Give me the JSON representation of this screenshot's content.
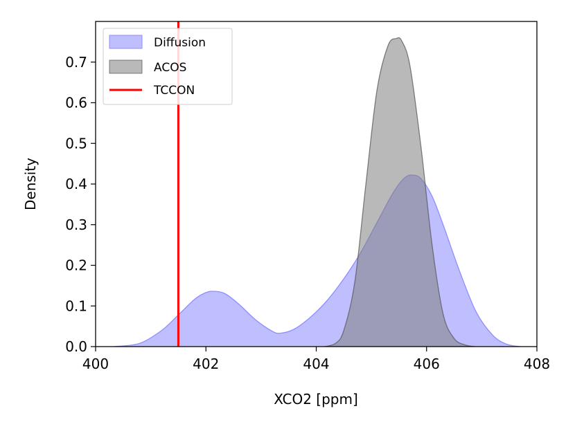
{
  "chart_data": {
    "type": "area",
    "xlabel": "XCO2 [ppm]",
    "ylabel": "Density",
    "xlim": [
      400,
      408
    ],
    "ylim": [
      0.0,
      0.8
    ],
    "x_ticks": [
      400,
      402,
      404,
      406,
      408
    ],
    "x_tick_labels": [
      "400",
      "402",
      "404",
      "406",
      "408"
    ],
    "y_ticks": [
      0.0,
      0.1,
      0.2,
      0.3,
      0.4,
      0.5,
      0.6,
      0.7
    ],
    "y_tick_labels": [
      "0.0",
      "0.1",
      "0.2",
      "0.3",
      "0.4",
      "0.5",
      "0.6",
      "0.7"
    ],
    "legend_position": "top-left",
    "series": [
      {
        "name": "Diffusion",
        "kind": "filled-density",
        "color": "#8080ff",
        "x": [
          400.35,
          400.8,
          401.2,
          401.5,
          401.8,
          402.0,
          402.15,
          402.35,
          402.6,
          402.9,
          403.2,
          403.35,
          403.6,
          403.9,
          404.2,
          404.5,
          404.8,
          405.1,
          405.4,
          405.6,
          405.75,
          405.9,
          406.1,
          406.3,
          406.6,
          406.9,
          407.2,
          407.45,
          407.7
        ],
        "values": [
          0.0,
          0.008,
          0.04,
          0.078,
          0.117,
          0.133,
          0.136,
          0.13,
          0.104,
          0.066,
          0.038,
          0.033,
          0.043,
          0.073,
          0.114,
          0.167,
          0.23,
          0.305,
          0.38,
          0.415,
          0.422,
          0.413,
          0.37,
          0.3,
          0.185,
          0.085,
          0.028,
          0.006,
          0.0
        ]
      },
      {
        "name": "ACOS",
        "kind": "filled-density",
        "color": "#808080",
        "x": [
          404.15,
          404.35,
          404.5,
          404.7,
          404.9,
          405.1,
          405.3,
          405.45,
          405.55,
          405.7,
          405.9,
          406.1,
          406.3,
          406.5,
          406.7,
          406.88
        ],
        "values": [
          0.0,
          0.008,
          0.04,
          0.16,
          0.4,
          0.63,
          0.74,
          0.758,
          0.752,
          0.69,
          0.49,
          0.25,
          0.08,
          0.02,
          0.004,
          0.0
        ]
      },
      {
        "name": "TCCON",
        "kind": "vertical-line",
        "color": "#ff0000",
        "x_value": 401.5
      }
    ]
  }
}
